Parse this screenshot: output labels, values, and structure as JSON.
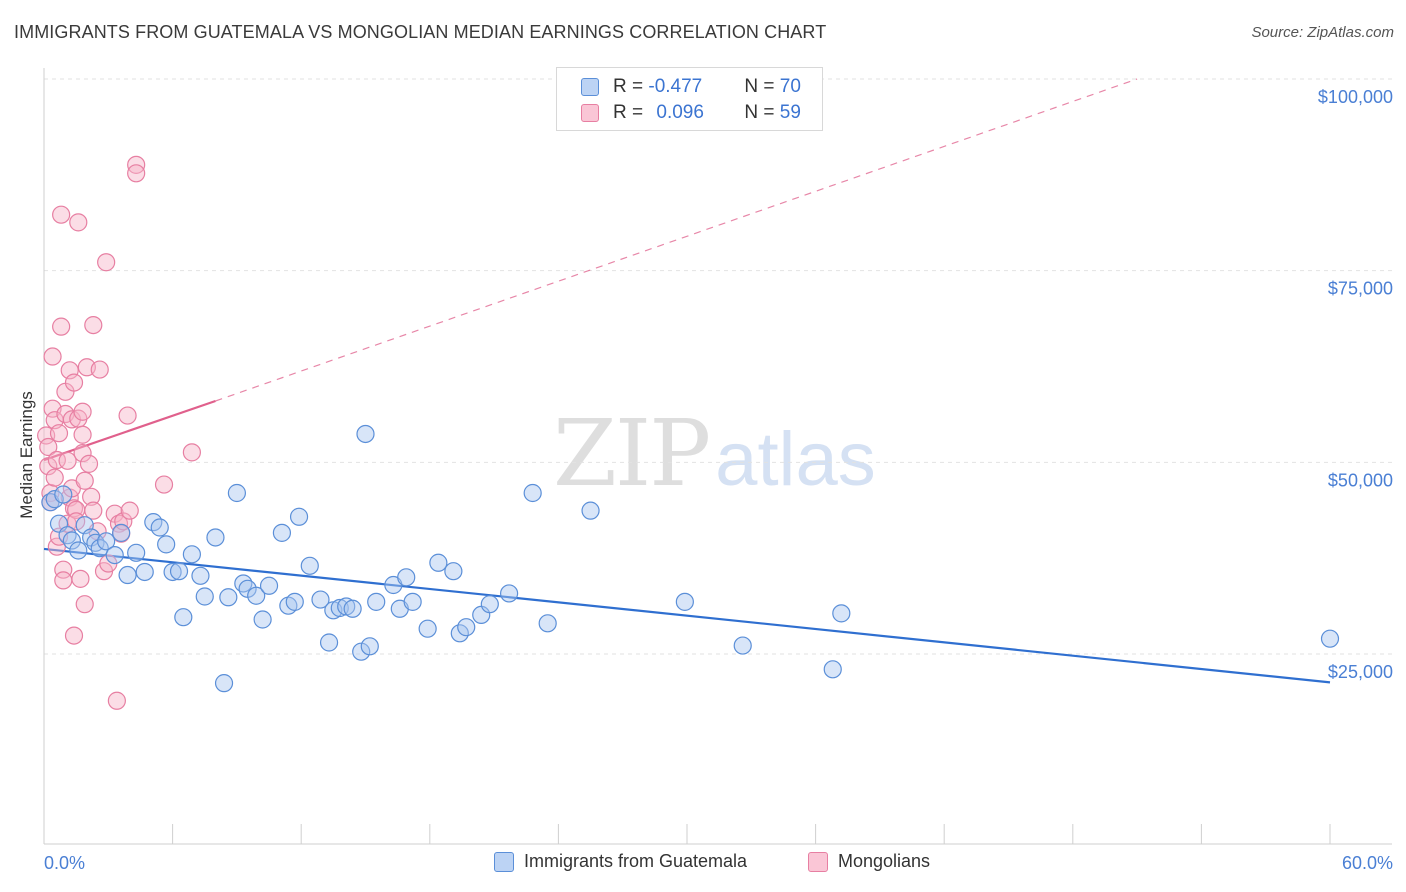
{
  "title": "IMMIGRANTS FROM GUATEMALA VS MONGOLIAN MEDIAN EARNINGS CORRELATION CHART",
  "source": "Source: ZipAtlas.com",
  "watermark": {
    "zip": "ZIP",
    "atlas": "atlas"
  },
  "legend": {
    "rows": [
      {
        "r_label": "R = ",
        "r_value": "-0.477",
        "n_label": "N = ",
        "n_value": "70"
      },
      {
        "r_label": "R = ",
        "r_value": "0.096",
        "n_label": "N = ",
        "n_value": "59"
      }
    ]
  },
  "colors": {
    "blue_fill": "#a9c6f0",
    "blue_stroke": "#5b8fd8",
    "blue_line": "#2f6fd0",
    "pink_fill": "#f6b3c8",
    "pink_stroke": "#e77fa2",
    "pink_line": "#e0608c",
    "axis_text": "#4a7fd4",
    "grid": "#e2e2e2"
  },
  "chart_data": {
    "type": "scatter",
    "title": "IMMIGRANTS FROM GUATEMALA VS MONGOLIAN MEDIAN EARNINGS CORRELATION CHART",
    "xlabel": "",
    "ylabel": "Median Earnings",
    "xlim": [
      0,
      60
    ],
    "ylim": [
      5000,
      103000
    ],
    "x_tick_labels": [
      "0.0%",
      "60.0%"
    ],
    "y_ticks": [
      25000,
      50000,
      75000,
      100000
    ],
    "y_tick_labels": [
      "$25,000",
      "$50,000",
      "$75,000",
      "$100,000"
    ],
    "grid": true,
    "legend_position": "top-center",
    "series": [
      {
        "name": "Immigrants from Guatemala",
        "color": "#5b8fd8",
        "R": -0.477,
        "N": 70,
        "trend": {
          "x": [
            0,
            60
          ],
          "y": [
            38700,
            21300
          ],
          "style": "solid"
        },
        "points": [
          [
            0.3,
            44800
          ],
          [
            0.5,
            45200
          ],
          [
            0.7,
            42000
          ],
          [
            0.9,
            45800
          ],
          [
            1.1,
            40500
          ],
          [
            1.3,
            39800
          ],
          [
            1.6,
            38500
          ],
          [
            1.9,
            41800
          ],
          [
            2.2,
            40200
          ],
          [
            2.4,
            39500
          ],
          [
            2.6,
            38800
          ],
          [
            2.9,
            39700
          ],
          [
            3.3,
            37900
          ],
          [
            3.6,
            40800
          ],
          [
            3.9,
            35300
          ],
          [
            4.3,
            38200
          ],
          [
            4.7,
            35700
          ],
          [
            5.1,
            42200
          ],
          [
            5.4,
            41500
          ],
          [
            5.7,
            39300
          ],
          [
            6.0,
            35700
          ],
          [
            6.3,
            35800
          ],
          [
            6.5,
            29800
          ],
          [
            6.9,
            38000
          ],
          [
            7.3,
            35200
          ],
          [
            7.5,
            32500
          ],
          [
            8.0,
            40200
          ],
          [
            8.4,
            21200
          ],
          [
            8.6,
            32400
          ],
          [
            9.0,
            46000
          ],
          [
            9.3,
            34200
          ],
          [
            9.5,
            33500
          ],
          [
            9.9,
            32600
          ],
          [
            10.2,
            29500
          ],
          [
            10.5,
            33900
          ],
          [
            11.1,
            40800
          ],
          [
            11.4,
            31300
          ],
          [
            11.7,
            31800
          ],
          [
            11.9,
            42900
          ],
          [
            12.4,
            36500
          ],
          [
            12.9,
            32100
          ],
          [
            13.3,
            26500
          ],
          [
            13.5,
            30700
          ],
          [
            13.8,
            31000
          ],
          [
            14.1,
            31200
          ],
          [
            14.4,
            30900
          ],
          [
            14.8,
            25300
          ],
          [
            15.0,
            53700
          ],
          [
            15.2,
            26000
          ],
          [
            15.5,
            31800
          ],
          [
            16.3,
            34000
          ],
          [
            16.6,
            30900
          ],
          [
            16.9,
            35000
          ],
          [
            17.2,
            31800
          ],
          [
            17.9,
            28300
          ],
          [
            18.4,
            36900
          ],
          [
            19.1,
            35800
          ],
          [
            19.4,
            27700
          ],
          [
            19.7,
            28500
          ],
          [
            20.4,
            30100
          ],
          [
            20.8,
            31500
          ],
          [
            21.7,
            32900
          ],
          [
            22.8,
            46000
          ],
          [
            23.5,
            29000
          ],
          [
            25.5,
            43700
          ],
          [
            29.9,
            31800
          ],
          [
            32.6,
            26100
          ],
          [
            36.8,
            23000
          ],
          [
            37.2,
            30300
          ],
          [
            60.0,
            27000
          ]
        ]
      },
      {
        "name": "Mongolians",
        "color": "#e77fa2",
        "R": 0.096,
        "N": 59,
        "trend": {
          "x": [
            0,
            8
          ],
          "y": [
            50300,
            58000
          ],
          "style": "solid"
        },
        "trend_extension": {
          "x": [
            8,
            51
          ],
          "y": [
            58000,
            100000
          ],
          "style": "dashed"
        },
        "points": [
          [
            0.1,
            53500
          ],
          [
            0.2,
            52000
          ],
          [
            0.2,
            49500
          ],
          [
            0.3,
            46000
          ],
          [
            0.3,
            44800
          ],
          [
            0.4,
            57000
          ],
          [
            0.4,
            63800
          ],
          [
            0.5,
            48000
          ],
          [
            0.5,
            55500
          ],
          [
            0.6,
            50300
          ],
          [
            0.6,
            39000
          ],
          [
            0.7,
            53800
          ],
          [
            0.7,
            40300
          ],
          [
            0.8,
            82300
          ],
          [
            0.8,
            67700
          ],
          [
            0.9,
            36000
          ],
          [
            0.9,
            34600
          ],
          [
            1.0,
            59200
          ],
          [
            1.0,
            56300
          ],
          [
            1.1,
            42000
          ],
          [
            1.1,
            50200
          ],
          [
            1.2,
            62000
          ],
          [
            1.2,
            45400
          ],
          [
            1.3,
            55600
          ],
          [
            1.3,
            46600
          ],
          [
            1.4,
            60400
          ],
          [
            1.4,
            44000
          ],
          [
            1.4,
            27400
          ],
          [
            1.5,
            43800
          ],
          [
            1.5,
            42300
          ],
          [
            1.6,
            81300
          ],
          [
            1.6,
            55700
          ],
          [
            1.7,
            34800
          ],
          [
            1.8,
            53600
          ],
          [
            1.8,
            51200
          ],
          [
            1.8,
            56600
          ],
          [
            1.9,
            31500
          ],
          [
            1.9,
            47600
          ],
          [
            2.0,
            62400
          ],
          [
            2.1,
            49800
          ],
          [
            2.2,
            45500
          ],
          [
            2.3,
            67900
          ],
          [
            2.3,
            43700
          ],
          [
            2.5,
            41000
          ],
          [
            2.6,
            62100
          ],
          [
            2.8,
            35800
          ],
          [
            2.9,
            76100
          ],
          [
            3.0,
            36800
          ],
          [
            3.3,
            43300
          ],
          [
            3.4,
            18900
          ],
          [
            3.5,
            42000
          ],
          [
            3.6,
            40700
          ],
          [
            3.7,
            42300
          ],
          [
            3.9,
            56100
          ],
          [
            4.0,
            43700
          ],
          [
            4.3,
            88800
          ],
          [
            4.3,
            87700
          ],
          [
            5.6,
            47100
          ],
          [
            6.9,
            51300
          ]
        ]
      }
    ]
  },
  "bottom_legend": {
    "items": [
      "Immigrants from Guatemala",
      "Mongolians"
    ]
  }
}
